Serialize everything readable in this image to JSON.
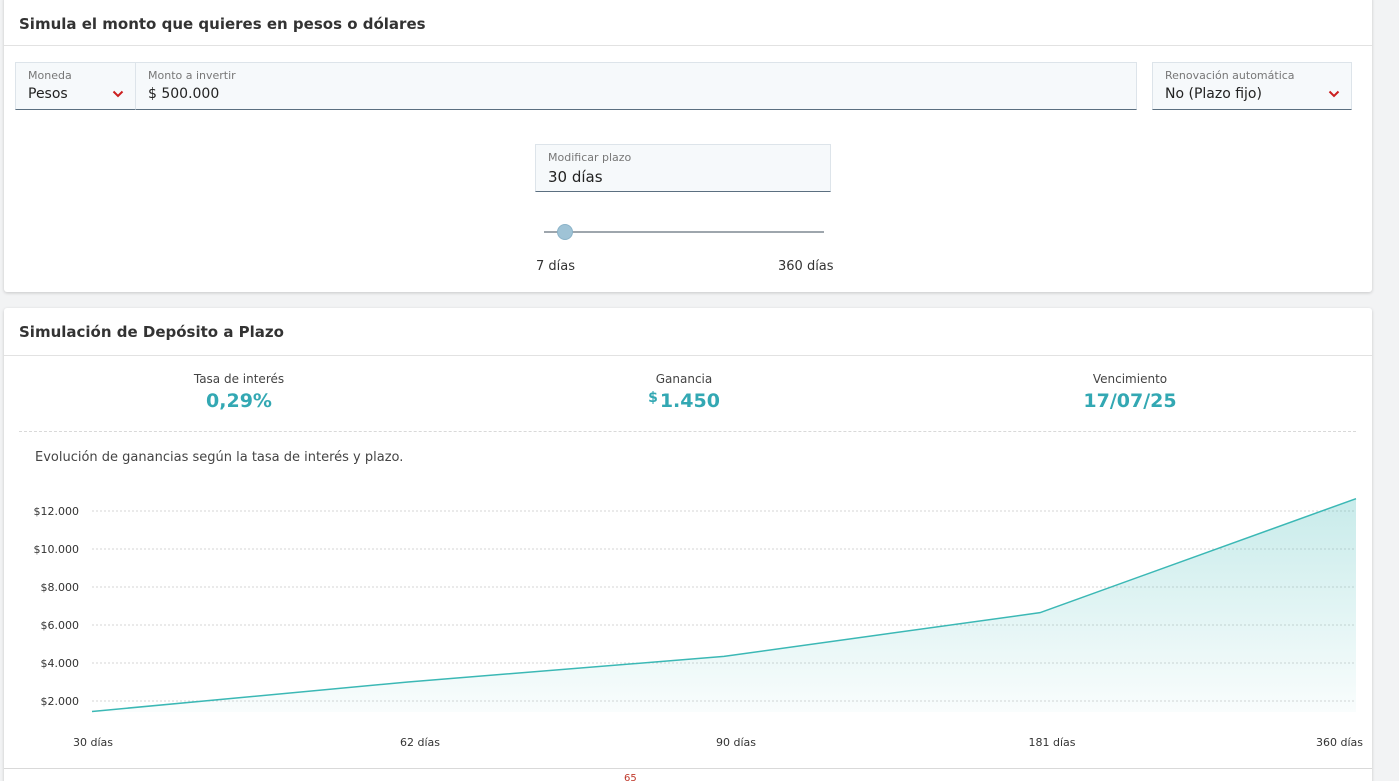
{
  "simulador": {
    "title": "Simula el monto que quieres en pesos o dólares",
    "moneda": {
      "label": "Moneda",
      "value": "Pesos"
    },
    "monto": {
      "label": "Monto a invertir",
      "value": "$ 500.000"
    },
    "renovacion": {
      "label": "Renovación automática",
      "value": "No (Plazo fijo)"
    },
    "plazo": {
      "label": "Modificar plazo",
      "value": "30 días"
    },
    "slider": {
      "min_label": "7 días",
      "max_label": "360 días",
      "min": 7,
      "max": 360,
      "current": 30
    }
  },
  "resultado": {
    "title": "Simulación de Depósito a Plazo",
    "tasa": {
      "label": "Tasa de interés",
      "value": "0,29%"
    },
    "ganancia": {
      "label": "Ganancia",
      "currency": "$",
      "value": "1.450"
    },
    "vencimiento": {
      "label": "Vencimiento",
      "value": "17/07/25"
    },
    "chart_caption": "Evolución de ganancias según la tasa de interés y plazo."
  },
  "colors": {
    "accent": "#33a8b3",
    "chevron": "#cc1f1f",
    "line": "#3bb8b5"
  },
  "chart_data": {
    "type": "area",
    "categories": [
      "30 días",
      "62 días",
      "90 días",
      "181 días",
      "360 días"
    ],
    "values": [
      1450,
      3000,
      4350,
      6650,
      12650
    ],
    "yticks": [
      2000,
      4000,
      6000,
      8000,
      10000,
      12000
    ],
    "ytick_labels": [
      "$2.000",
      "$4.000",
      "$6.000",
      "$8.000",
      "$10.000",
      "$12.000"
    ],
    "ylim": [
      1000,
      12700
    ],
    "grid": true
  },
  "footer_fragment": "65"
}
